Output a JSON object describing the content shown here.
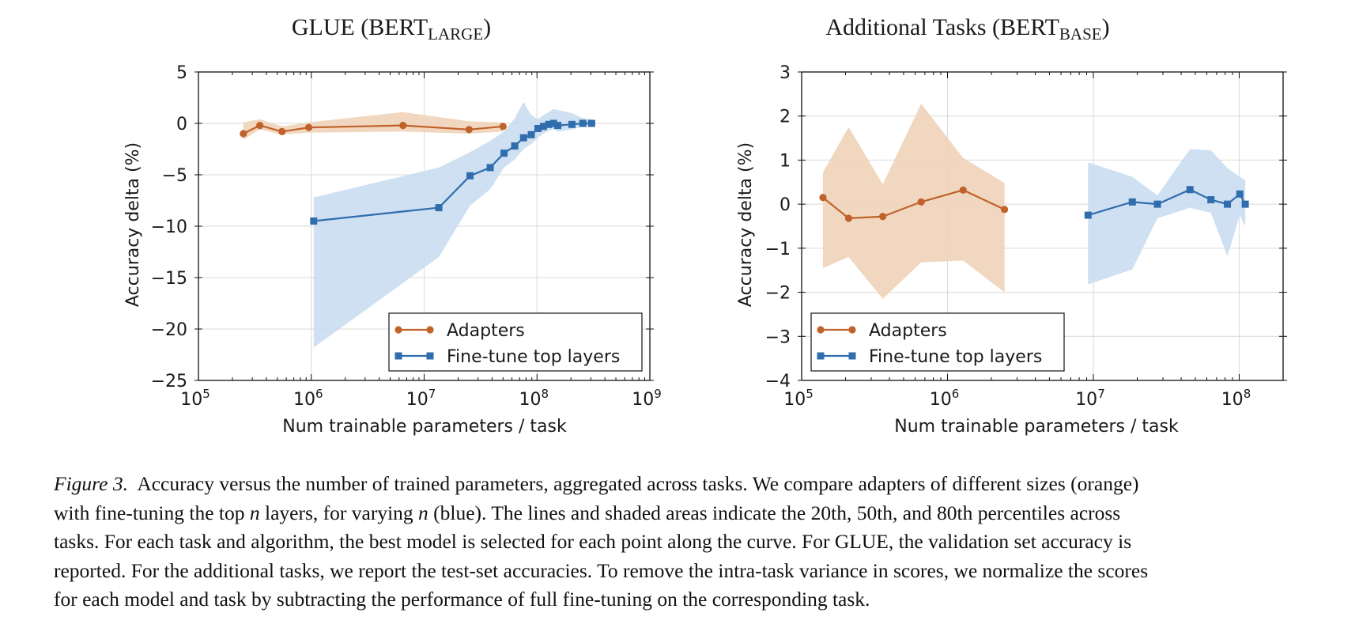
{
  "chart_data": [
    {
      "type": "line",
      "title": "GLUE (BERT",
      "title_sub": "LARGE",
      "title_end": ")",
      "xlabel": "Num trainable parameters / task",
      "ylabel": "Accuracy delta (%)",
      "x_scale": "log",
      "xlim": [
        100000,
        1000000000
      ],
      "ylim": [
        -25,
        5
      ],
      "x_ticks": [
        {
          "base": "10",
          "exp": "5",
          "value": 100000
        },
        {
          "base": "10",
          "exp": "6",
          "value": 1000000
        },
        {
          "base": "10",
          "exp": "7",
          "value": 10000000
        },
        {
          "base": "10",
          "exp": "8",
          "value": 100000000
        },
        {
          "base": "10",
          "exp": "9",
          "value": 1000000000
        }
      ],
      "y_ticks": [
        {
          "label": "5",
          "value": 5
        },
        {
          "label": "0",
          "value": 0
        },
        {
          "label": "−5",
          "value": -5
        },
        {
          "label": "−10",
          "value": -10
        },
        {
          "label": "−15",
          "value": -15
        },
        {
          "label": "−20",
          "value": -20
        },
        {
          "label": "−25",
          "value": -25
        }
      ],
      "grid": true,
      "legend_position": "lower-right",
      "series": [
        {
          "name": "Adapters",
          "color": "#c0622a",
          "band_color": "#f0d3b8",
          "marker": "circle",
          "x": [
            250000,
            350000,
            550000,
            950000,
            6500000,
            25000000,
            50000000
          ],
          "y": [
            -1.0,
            -0.2,
            -0.8,
            -0.4,
            -0.2,
            -0.6,
            -0.3
          ],
          "y_low": [
            -1.6,
            -0.6,
            -1.1,
            -0.9,
            -0.8,
            -1.0,
            -0.8
          ],
          "y_high": [
            0.1,
            0.4,
            -0.3,
            0.1,
            1.1,
            0.2,
            0.1
          ]
        },
        {
          "name": "Fine-tune top layers",
          "color": "#2f6dad",
          "band_color": "#c9ddef",
          "marker": "square",
          "x": [
            1050000,
            13500000,
            25500000,
            38500000,
            51000000,
            63500000,
            76000000,
            89000000,
            102000000,
            114000000,
            127000000,
            140000000,
            153000000,
            204000000,
            255000000,
            305000000
          ],
          "y": [
            -9.5,
            -8.2,
            -5.1,
            -4.3,
            -2.9,
            -2.2,
            -1.4,
            -1.1,
            -0.5,
            -0.3,
            -0.1,
            0.0,
            -0.2,
            -0.1,
            0.0,
            0.0
          ],
          "y_low": [
            -21.8,
            -13.0,
            -8.0,
            -6.4,
            -4.3,
            -3.5,
            -2.5,
            -2.0,
            -1.4,
            -1.0,
            -0.7,
            -0.6,
            -0.8,
            -0.6,
            -0.3,
            -0.3
          ],
          "y_high": [
            -7.2,
            -4.3,
            -2.8,
            -1.7,
            -0.8,
            0.5,
            2.1,
            0.8,
            0.4,
            0.8,
            1.1,
            1.4,
            1.3,
            1.0,
            0.5,
            0.4
          ]
        }
      ]
    },
    {
      "type": "line",
      "title": "Additional Tasks (BERT",
      "title_sub": "BASE",
      "title_end": ")",
      "xlabel": "Num trainable parameters / task",
      "ylabel": "Accuracy delta (%)",
      "x_scale": "log",
      "xlim": [
        100000,
        200000000
      ],
      "ylim": [
        -4,
        3
      ],
      "x_ticks": [
        {
          "base": "10",
          "exp": "5",
          "value": 100000
        },
        {
          "base": "10",
          "exp": "6",
          "value": 1000000
        },
        {
          "base": "10",
          "exp": "7",
          "value": 10000000
        },
        {
          "base": "10",
          "exp": "8",
          "value": 100000000
        }
      ],
      "y_ticks": [
        {
          "label": "3",
          "value": 3
        },
        {
          "label": "2",
          "value": 2
        },
        {
          "label": "1",
          "value": 1
        },
        {
          "label": "0",
          "value": 0
        },
        {
          "label": "−1",
          "value": -1
        },
        {
          "label": "−2",
          "value": -2
        },
        {
          "label": "−3",
          "value": -3
        },
        {
          "label": "−4",
          "value": -4
        }
      ],
      "grid": true,
      "legend_position": "lower-left",
      "series": [
        {
          "name": "Adapters",
          "color": "#c0622a",
          "band_color": "#f0d3b8",
          "marker": "circle",
          "x": [
            140000,
            210000,
            360000,
            660000,
            1280000,
            2460000
          ],
          "y": [
            0.15,
            -0.32,
            -0.28,
            0.05,
            0.32,
            -0.12
          ],
          "y_low": [
            -1.45,
            -1.2,
            -2.15,
            -1.32,
            -1.28,
            -2.0
          ],
          "y_high": [
            0.72,
            1.75,
            0.45,
            2.28,
            1.05,
            0.48
          ]
        },
        {
          "name": "Fine-tune top layers",
          "color": "#2f6dad",
          "band_color": "#c9ddef",
          "marker": "square",
          "x": [
            9200000,
            18500000,
            27500000,
            46000000,
            64000000,
            83000000,
            101000000,
            110000000
          ],
          "y": [
            -0.25,
            0.05,
            0.0,
            0.33,
            0.1,
            0.0,
            0.23,
            0.0
          ],
          "y_low": [
            -1.82,
            -1.48,
            -0.32,
            -0.08,
            -0.2,
            -1.18,
            -0.25,
            -0.5
          ],
          "y_high": [
            0.95,
            0.62,
            0.2,
            1.25,
            1.22,
            0.82,
            0.62,
            0.55
          ]
        }
      ]
    }
  ],
  "caption": {
    "label": "Figure 3.",
    "line1": "Accuracy versus the number of trained parameters, aggregated across tasks. We compare adapters of different sizes (orange)",
    "line2_a": "with fine-tuning the top ",
    "line2_var1": "n",
    "line2_b": " layers, for varying ",
    "line2_var2": "n",
    "line2_c": " (blue). The lines and shaded areas indicate the 20th, 50th, and 80th percentiles across",
    "line3": "tasks. For each task and algorithm, the best model is selected for each point along the curve. For GLUE, the validation set accuracy is",
    "line4": "reported. For the additional tasks, we report the test-set accuracies. To remove the intra-task variance in scores, we normalize the scores",
    "line5": "for each model and task by subtracting the performance of full fine-tuning on the corresponding task."
  }
}
